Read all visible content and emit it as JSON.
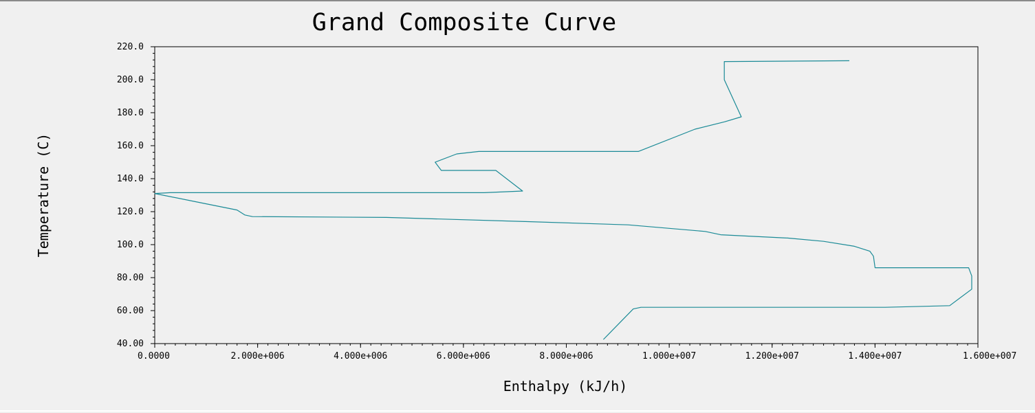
{
  "chart_data": {
    "type": "line",
    "title": "Grand Composite Curve",
    "xlabel": "Enthalpy (kJ/h)",
    "ylabel": "Temperature (C)",
    "xlim": [
      0,
      16000000
    ],
    "ylim": [
      40,
      220
    ],
    "x_ticks": [
      0,
      2000000,
      4000000,
      6000000,
      8000000,
      10000000,
      12000000,
      14000000,
      16000000
    ],
    "x_tick_labels": [
      "0.0000",
      "2.000e+006",
      "4.000e+006",
      "6.000e+006",
      "8.000e+006",
      "1.000e+007",
      "1.200e+007",
      "1.400e+007",
      "1.600e+007"
    ],
    "y_ticks": [
      40,
      60,
      80,
      100,
      120,
      140,
      160,
      180,
      200,
      220
    ],
    "y_tick_labels": [
      "40.00",
      "60.00",
      "80.00",
      "100.0",
      "120.0",
      "140.0",
      "160.0",
      "180.0",
      "200.0",
      "220.0"
    ],
    "grid": false,
    "legend": "none",
    "line_color": "#1a8a96",
    "series": [
      {
        "x": [
          13500000,
          11070000,
          11070000,
          11400000,
          11080000,
          10500000,
          9400000,
          8300000,
          6300000,
          5870000,
          5450000,
          5570000,
          6630000,
          7150000,
          6400000,
          300000,
          0,
          800000,
          1600000,
          1750000,
          1900000,
          4500000,
          7200000,
          9200000,
          10700000,
          11000000,
          12300000,
          13000000,
          13600000,
          13900000,
          13970000,
          14000000,
          15820000,
          15880000,
          15880000,
          15450000,
          14200000,
          9450000,
          9300000,
          8720000
        ],
        "y": [
          211.5,
          211.0,
          200.0,
          177.5,
          174.5,
          170.0,
          156.5,
          156.5,
          156.5,
          155.0,
          150.0,
          145.0,
          145.0,
          132.5,
          131.5,
          131.5,
          131.0,
          126.0,
          121.0,
          118.0,
          117.0,
          116.5,
          114.0,
          112.0,
          108.0,
          106.0,
          104.0,
          102.0,
          99.0,
          96.0,
          93.0,
          86.0,
          86.0,
          81.0,
          73.0,
          63.0,
          62.0,
          62.0,
          61.0,
          42.5
        ]
      }
    ]
  }
}
